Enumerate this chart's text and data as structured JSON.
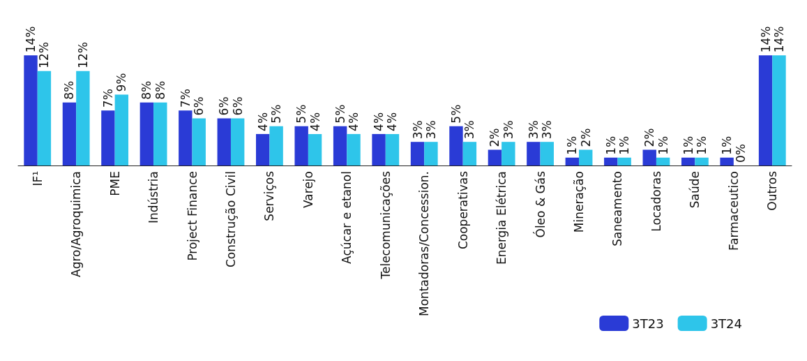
{
  "chart_data": {
    "type": "bar",
    "categories": [
      "IF¹",
      "Agro/Agroquimica",
      "PME",
      "Indústria",
      "Project Finance",
      "Construção Civil",
      "Serviços",
      "Varejo",
      "Açúcar e etanol",
      "Telecomunicações",
      "Montadoras/Concession.",
      "Cooperativas",
      "Energia Elétrica",
      "Óleo & Gás",
      "Mineração",
      "Saneamento",
      "Locadoras",
      "Saúde",
      "Farmaceutico",
      "Outros"
    ],
    "series": [
      {
        "name": "3T23",
        "color": "#2a3bd6",
        "values": [
          14,
          8,
          7,
          8,
          7,
          6,
          4,
          5,
          5,
          4,
          3,
          5,
          2,
          3,
          1,
          1,
          2,
          1,
          1,
          14
        ],
        "value_labels": [
          "14%",
          "8%",
          "7%",
          "8%",
          "7%",
          "6%",
          "4%",
          "5%",
          "5%",
          "4%",
          "3%",
          "5%",
          "2%",
          "3%",
          "1%",
          "1%",
          "2%",
          "1%",
          "1%",
          "14%"
        ]
      },
      {
        "name": "3T24",
        "color": "#2ec5ea",
        "values": [
          12,
          12,
          9,
          8,
          6,
          6,
          5,
          4,
          4,
          4,
          3,
          3,
          3,
          3,
          2,
          1,
          1,
          1,
          0,
          14
        ],
        "value_labels": [
          "12%",
          "12%",
          "9%",
          "8%",
          "6%",
          "6%",
          "5%",
          "4%",
          "4%",
          "4%",
          "3%",
          "3%",
          "3%",
          "3%",
          "2%",
          "1%",
          "1%",
          "1%",
          "0%",
          "14%"
        ]
      }
    ],
    "legend": "bottom right"
  }
}
